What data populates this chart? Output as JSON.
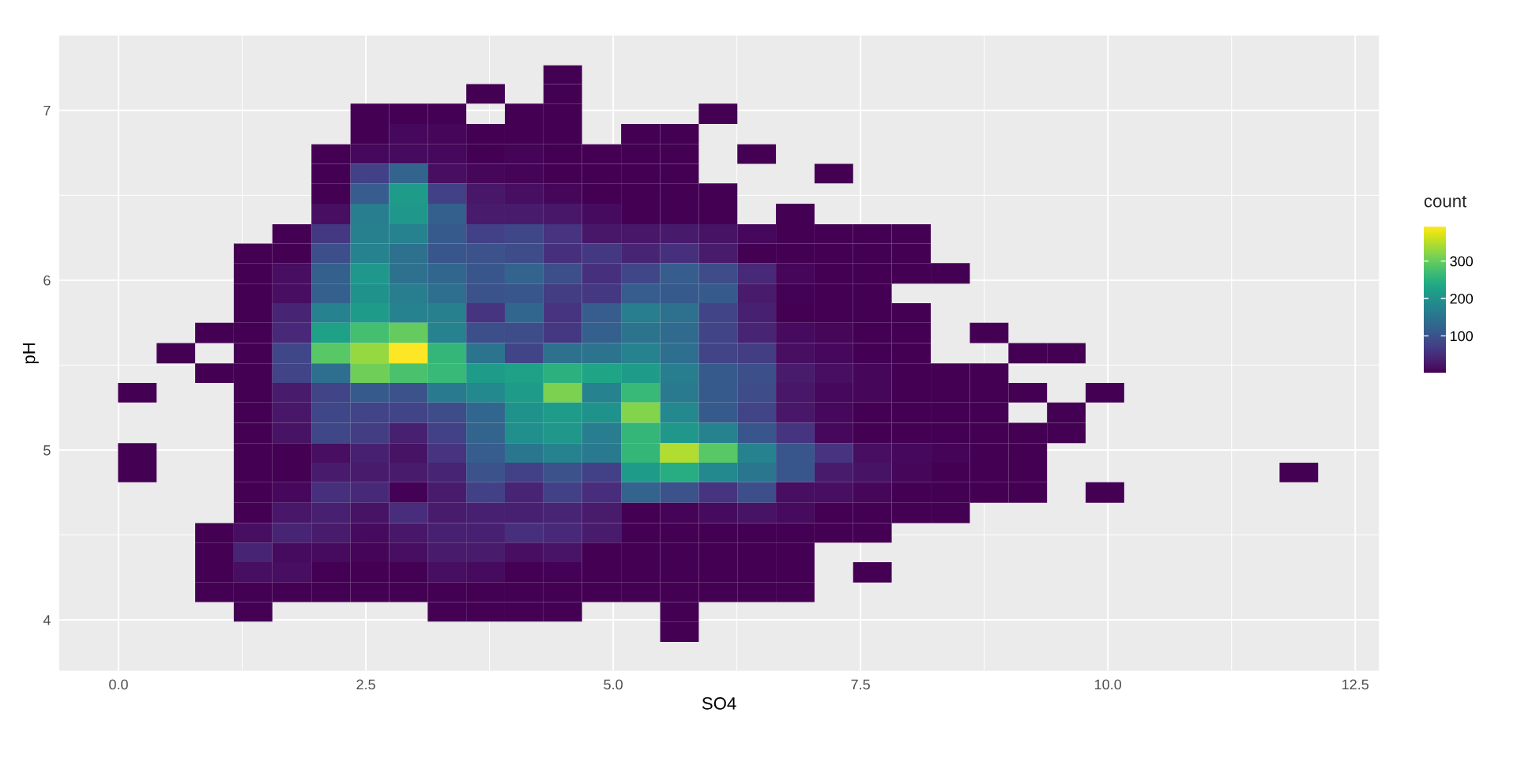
{
  "chart_data": {
    "type": "heatmap",
    "xlabel": "SO4",
    "ylabel": "pH",
    "clabel": "count",
    "x": [
      0.19,
      0.58,
      0.97,
      1.36,
      1.75,
      2.15,
      2.54,
      2.93,
      3.32,
      3.71,
      4.1,
      4.49,
      4.88,
      5.28,
      5.67,
      6.06,
      6.45,
      6.84,
      7.23,
      7.62,
      8.01,
      8.41,
      8.8,
      9.19,
      9.58,
      9.97,
      10.36,
      10.75,
      11.14,
      11.54,
      11.93
    ],
    "y": [
      7.21,
      7.1,
      6.98,
      6.86,
      6.74,
      6.63,
      6.51,
      6.39,
      6.27,
      6.16,
      6.04,
      5.92,
      5.81,
      5.69,
      5.57,
      5.45,
      5.34,
      5.22,
      5.1,
      4.98,
      4.87,
      4.75,
      4.63,
      4.51,
      4.4,
      4.28,
      4.16,
      4.05,
      3.93
    ],
    "cells": [
      [
        null,
        null,
        null,
        null,
        null,
        null,
        null,
        null,
        null,
        null,
        null,
        2,
        null,
        null,
        null,
        null,
        null,
        null,
        null,
        null,
        null,
        null,
        null,
        null,
        null,
        null,
        null,
        null,
        null,
        null,
        null
      ],
      [
        null,
        null,
        null,
        null,
        null,
        null,
        null,
        null,
        null,
        2,
        null,
        2,
        null,
        null,
        null,
        null,
        null,
        null,
        null,
        null,
        null,
        null,
        null,
        null,
        null,
        null,
        null,
        null,
        null,
        null,
        null
      ],
      [
        null,
        null,
        null,
        null,
        null,
        null,
        2,
        2,
        2,
        null,
        2,
        2,
        null,
        null,
        null,
        2,
        null,
        null,
        null,
        null,
        null,
        null,
        null,
        null,
        null,
        null,
        null,
        null,
        null,
        null,
        null
      ],
      [
        null,
        null,
        null,
        null,
        null,
        null,
        2,
        10,
        8,
        2,
        2,
        2,
        null,
        2,
        2,
        null,
        null,
        null,
        null,
        null,
        null,
        null,
        null,
        null,
        null,
        null,
        null,
        null,
        null,
        null,
        null
      ],
      [
        null,
        null,
        null,
        null,
        null,
        2,
        10,
        12,
        10,
        2,
        5,
        2,
        2,
        2,
        2,
        null,
        2,
        null,
        null,
        null,
        null,
        null,
        null,
        null,
        null,
        null,
        null,
        null,
        null,
        null,
        null
      ],
      [
        null,
        null,
        null,
        null,
        null,
        2,
        75,
        125,
        15,
        8,
        5,
        2,
        2,
        2,
        2,
        null,
        null,
        null,
        2,
        null,
        null,
        null,
        null,
        null,
        null,
        null,
        null,
        null,
        null,
        null,
        null
      ],
      [
        null,
        null,
        null,
        null,
        null,
        2,
        115,
        215,
        75,
        25,
        15,
        8,
        2,
        2,
        2,
        2,
        null,
        null,
        null,
        null,
        null,
        null,
        null,
        null,
        null,
        null,
        null,
        null,
        null,
        null,
        null
      ],
      [
        null,
        null,
        null,
        null,
        null,
        15,
        165,
        210,
        120,
        30,
        30,
        25,
        12,
        2,
        2,
        2,
        null,
        2,
        null,
        null,
        null,
        null,
        null,
        null,
        null,
        null,
        null,
        null,
        null,
        null,
        null
      ],
      [
        null,
        null,
        null,
        null,
        2,
        65,
        170,
        175,
        110,
        75,
        85,
        60,
        25,
        25,
        28,
        20,
        10,
        2,
        2,
        2,
        2,
        null,
        null,
        null,
        null,
        null,
        null,
        null,
        null,
        null,
        null
      ],
      [
        null,
        null,
        null,
        2,
        2,
        95,
        175,
        145,
        105,
        100,
        90,
        55,
        65,
        40,
        55,
        30,
        2,
        2,
        2,
        2,
        2,
        null,
        null,
        null,
        null,
        null,
        null,
        null,
        null,
        null,
        null
      ],
      [
        null,
        null,
        null,
        2,
        15,
        120,
        210,
        145,
        130,
        105,
        125,
        95,
        55,
        85,
        115,
        90,
        45,
        8,
        2,
        2,
        2,
        2,
        null,
        null,
        null,
        null,
        null,
        null,
        null,
        null,
        null
      ],
      [
        null,
        null,
        null,
        2,
        15,
        120,
        200,
        165,
        140,
        100,
        105,
        70,
        65,
        115,
        110,
        110,
        30,
        3,
        2,
        2,
        null,
        null,
        null,
        null,
        null,
        null,
        null,
        null,
        null,
        null,
        null
      ],
      [
        null,
        null,
        null,
        2,
        40,
        175,
        215,
        175,
        170,
        60,
        130,
        60,
        115,
        165,
        145,
        80,
        35,
        2,
        2,
        2,
        2,
        null,
        null,
        null,
        null,
        null,
        null,
        null,
        null,
        null,
        null
      ],
      [
        null,
        null,
        2,
        2,
        45,
        225,
        275,
        300,
        175,
        95,
        90,
        65,
        120,
        150,
        135,
        80,
        40,
        12,
        8,
        2,
        2,
        null,
        2,
        null,
        null,
        null,
        null,
        null,
        null,
        null,
        null
      ],
      [
        null,
        2,
        null,
        2,
        85,
        290,
        330,
        392,
        260,
        150,
        80,
        145,
        150,
        175,
        140,
        80,
        70,
        15,
        10,
        2,
        2,
        null,
        null,
        2,
        2,
        null,
        null,
        null,
        null,
        null,
        null
      ],
      [
        null,
        null,
        2,
        2,
        80,
        140,
        305,
        280,
        265,
        215,
        225,
        250,
        230,
        215,
        165,
        110,
        95,
        30,
        15,
        8,
        2,
        2,
        2,
        null,
        null,
        null,
        null,
        null,
        null,
        null,
        null
      ],
      [
        2,
        null,
        null,
        2,
        30,
        80,
        110,
        100,
        160,
        185,
        215,
        315,
        175,
        265,
        160,
        110,
        90,
        25,
        10,
        8,
        2,
        2,
        2,
        2,
        null,
        2,
        null,
        null,
        null,
        null,
        null
      ],
      [
        null,
        null,
        null,
        2,
        25,
        85,
        80,
        80,
        90,
        130,
        200,
        215,
        200,
        320,
        185,
        110,
        80,
        25,
        10,
        2,
        2,
        2,
        2,
        null,
        2,
        null,
        null,
        null,
        null,
        null,
        null
      ],
      [
        null,
        null,
        null,
        2,
        20,
        85,
        70,
        35,
        75,
        125,
        195,
        210,
        165,
        260,
        210,
        175,
        105,
        60,
        10,
        2,
        2,
        2,
        2,
        2,
        2,
        null,
        null,
        null,
        null,
        null,
        null
      ],
      [
        2,
        null,
        null,
        2,
        2,
        15,
        35,
        20,
        60,
        115,
        155,
        175,
        160,
        260,
        345,
        290,
        175,
        105,
        60,
        15,
        10,
        5,
        2,
        2,
        null,
        null,
        null,
        null,
        null,
        null,
        null
      ],
      [
        2,
        null,
        null,
        2,
        2,
        30,
        30,
        30,
        40,
        100,
        75,
        100,
        75,
        215,
        245,
        185,
        155,
        105,
        30,
        20,
        8,
        2,
        2,
        2,
        null,
        null,
        null,
        null,
        null,
        null,
        2
      ],
      [
        null,
        null,
        null,
        2,
        10,
        55,
        45,
        3,
        30,
        75,
        40,
        75,
        50,
        125,
        100,
        60,
        95,
        15,
        15,
        8,
        2,
        2,
        2,
        2,
        null,
        2,
        null,
        null,
        null,
        null,
        null
      ],
      [
        null,
        null,
        null,
        2,
        25,
        35,
        20,
        50,
        30,
        35,
        35,
        40,
        30,
        2,
        5,
        12,
        20,
        12,
        2,
        2,
        2,
        2,
        null,
        null,
        null,
        null,
        null,
        null,
        null,
        null,
        null
      ],
      [
        null,
        null,
        2,
        15,
        40,
        30,
        12,
        25,
        35,
        35,
        55,
        45,
        30,
        2,
        2,
        2,
        2,
        2,
        2,
        2,
        null,
        null,
        null,
        null,
        null,
        null,
        null,
        null,
        null,
        null,
        null
      ],
      [
        null,
        null,
        2,
        40,
        12,
        12,
        6,
        15,
        30,
        30,
        15,
        22,
        2,
        2,
        2,
        2,
        2,
        2,
        null,
        null,
        null,
        null,
        null,
        null,
        null,
        null,
        null,
        null,
        null,
        null,
        null
      ],
      [
        null,
        null,
        2,
        15,
        15,
        2,
        2,
        2,
        15,
        12,
        2,
        4,
        2,
        2,
        2,
        2,
        2,
        2,
        null,
        2,
        null,
        null,
        null,
        null,
        null,
        null,
        null,
        null,
        null,
        null,
        null
      ],
      [
        null,
        null,
        2,
        2,
        2,
        2,
        2,
        2,
        2,
        2,
        2,
        2,
        2,
        2,
        2,
        2,
        2,
        2,
        null,
        null,
        null,
        null,
        null,
        null,
        null,
        null,
        null,
        null,
        null,
        null,
        null
      ],
      [
        null,
        null,
        null,
        2,
        null,
        null,
        null,
        null,
        2,
        2,
        2,
        2,
        null,
        null,
        2,
        null,
        null,
        null,
        null,
        null,
        null,
        null,
        null,
        null,
        null,
        null,
        null,
        null,
        null,
        null,
        null
      ],
      [
        null,
        null,
        null,
        null,
        null,
        null,
        null,
        null,
        null,
        null,
        null,
        null,
        null,
        null,
        2,
        null,
        null,
        null,
        null,
        null,
        null,
        null,
        null,
        null,
        null,
        null,
        null,
        null,
        null,
        null,
        null
      ]
    ],
    "clim": [
      1,
      392
    ],
    "cticks": [
      100,
      200,
      300
    ],
    "xlim": [
      -0.6,
      12.74
    ],
    "xticks": [
      {
        "value": 0,
        "label": "0.0"
      },
      2.5,
      {
        "value": 5,
        "label": "5.0"
      },
      7.5,
      {
        "value": 10,
        "label": "10.0"
      },
      12.5
    ],
    "ylim": [
      3.7,
      7.44
    ],
    "yticks": [
      4,
      5,
      6,
      7
    ],
    "grid": true
  }
}
